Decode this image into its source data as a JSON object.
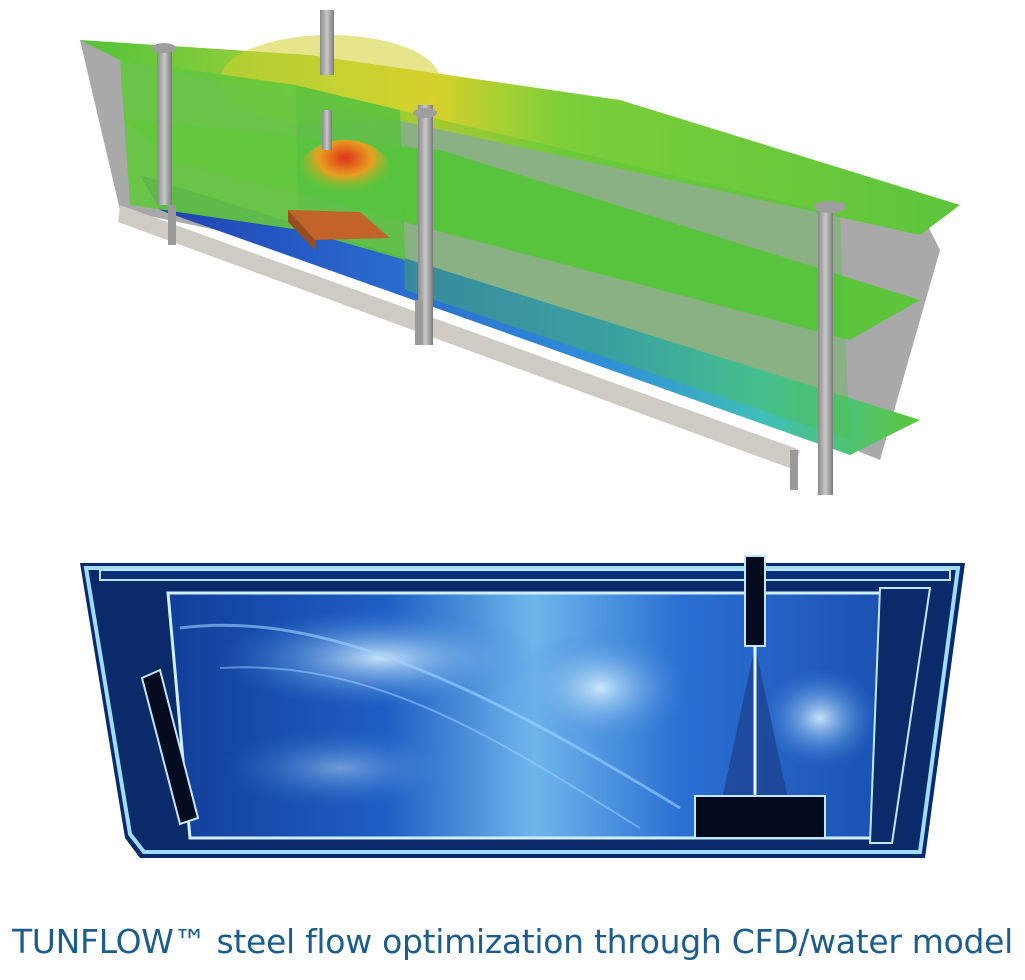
{
  "caption": "TUNFLOW™ steel flow optimization through CFD/water model",
  "figures": [
    {
      "kind": "cfd-velocity-contour-tundish",
      "palette": [
        "#1f3fb0",
        "#2f8fd8",
        "#3fd0c0",
        "#6cc93a",
        "#d9d22a",
        "#e0451c",
        "#c47a3a"
      ]
    },
    {
      "kind": "water-model-flow-visualization",
      "palette": [
        "#050b1e",
        "#0f3a8a",
        "#2f7fd8",
        "#9fdcff",
        "#ffffff"
      ]
    }
  ]
}
